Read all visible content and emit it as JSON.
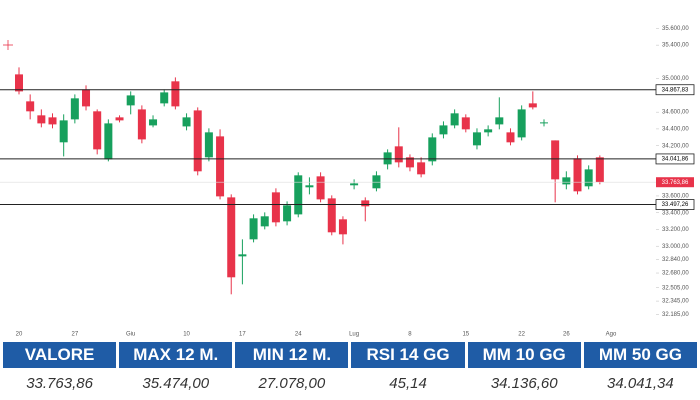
{
  "chart_data": {
    "type": "candlestick",
    "categories": [
      "20",
      null,
      null,
      null,
      null,
      "27",
      null,
      null,
      null,
      null,
      "Giu",
      null,
      null,
      null,
      null,
      "10",
      null,
      null,
      null,
      null,
      "17",
      null,
      null,
      null,
      null,
      "24",
      null,
      null,
      null,
      null,
      "Lug",
      null,
      null,
      null,
      null,
      "8",
      null,
      null,
      null,
      null,
      "15",
      null,
      null,
      null,
      null,
      "22",
      null,
      null,
      null,
      "26",
      null,
      null,
      null,
      "Ago"
    ],
    "open": [
      35051,
      34729,
      34562,
      34538,
      34240,
      34514,
      34872,
      34610,
      34037,
      34538,
      34681,
      34633,
      34442,
      34705,
      34968,
      34430,
      34621,
      34061,
      34311,
      33583,
      32879,
      33082,
      33237,
      33643,
      33297,
      33380,
      33703,
      33834,
      33571,
      33321,
      33727,
      33547,
      33691,
      33977,
      34192,
      34061,
      34001,
      34013,
      34335,
      34442,
      34538,
      34204,
      34359,
      34454,
      34359,
      34299,
      34705,
      34466,
      34263,
      33738,
      34049,
      33715,
      34061,
      null
    ],
    "high": [
      35135,
      34812,
      34633,
      34586,
      34574,
      34812,
      34920,
      34633,
      34514,
      34562,
      34848,
      34681,
      34562,
      34872,
      35015,
      34586,
      34657,
      34407,
      34395,
      33619,
      33082,
      33380,
      33404,
      33691,
      33535,
      33882,
      33822,
      33882,
      33607,
      33357,
      33798,
      33583,
      33894,
      34156,
      34419,
      34096,
      34061,
      34347,
      34490,
      34633,
      34574,
      34407,
      34442,
      34777,
      34407,
      34681,
      34848,
      34514,
      34263,
      33894,
      34084,
      33965,
      34084,
      null
    ],
    "low": [
      34813,
      34514,
      34419,
      34407,
      34072,
      34466,
      34621,
      34096,
      34013,
      34478,
      34574,
      34228,
      34419,
      34669,
      34633,
      34383,
      33846,
      34013,
      33559,
      32426,
      32545,
      33046,
      33201,
      33237,
      33249,
      33345,
      33619,
      33524,
      33130,
      33022,
      33679,
      33297,
      33655,
      33917,
      33941,
      33894,
      33822,
      33965,
      34287,
      34407,
      34359,
      34156,
      34311,
      34395,
      34204,
      34263,
      34633,
      34430,
      33524,
      33679,
      33619,
      33679,
      33739,
      null
    ],
    "close": [
      34848,
      34610,
      34466,
      34454,
      34502,
      34765,
      34669,
      34156,
      34466,
      34502,
      34800,
      34275,
      34514,
      34836,
      34669,
      34538,
      33894,
      34359,
      33595,
      32629,
      32903,
      33333,
      33357,
      33285,
      33488,
      33846,
      33727,
      33559,
      33166,
      33142,
      33750,
      33476,
      33846,
      34120,
      34001,
      33941,
      33858,
      34299,
      34442,
      34586,
      34395,
      34359,
      34395,
      34538,
      34240,
      34633,
      34657,
      34478,
      33798,
      33822,
      33655,
      33917,
      33764,
      null
    ],
    "up_color": "#17a05d",
    "down_color": "#e8334a",
    "ylim": [
      32000,
      35700
    ],
    "yticks": [
      {
        "value": 35600,
        "label": "35.600,00"
      },
      {
        "value": 35400,
        "label": "35.400,00"
      },
      {
        "value": 35000,
        "label": "35.000,00"
      },
      {
        "value": 34600,
        "label": "34.600,00"
      },
      {
        "value": 34400,
        "label": "34.400,00"
      },
      {
        "value": 34200,
        "label": "34.200,00"
      },
      {
        "value": 33600,
        "label": "33.600,00"
      },
      {
        "value": 33400,
        "label": "33.400,00"
      },
      {
        "value": 33200,
        "label": "33.200,00"
      },
      {
        "value": 33000,
        "label": "33.000,00"
      },
      {
        "value": 32840,
        "label": "32.840,00"
      },
      {
        "value": 32680,
        "label": "32.680,00"
      },
      {
        "value": 32505,
        "label": "32.505,00"
      },
      {
        "value": 32345,
        "label": "32.345,00"
      },
      {
        "value": 32185,
        "label": "32.185,00"
      }
    ],
    "levels": [
      {
        "value": 34867.83,
        "label": "34.867,83"
      },
      {
        "value": 34041.86,
        "label": "34.041,86"
      },
      {
        "value": 33497.26,
        "label": "33.497,26"
      }
    ],
    "last_price": {
      "value": 33763.86,
      "label": "33.763,86"
    }
  },
  "table": {
    "headers": [
      "VALORE",
      "MAX 12 M.",
      "MIN 12 M.",
      "RSI 14 GG",
      "MM 10 GG",
      "MM 50 GG"
    ],
    "rows": [
      [
        "33.763,86",
        "35.474,00",
        "27.078,00",
        "45,14",
        "34.136,60",
        "34.041,34"
      ]
    ]
  }
}
